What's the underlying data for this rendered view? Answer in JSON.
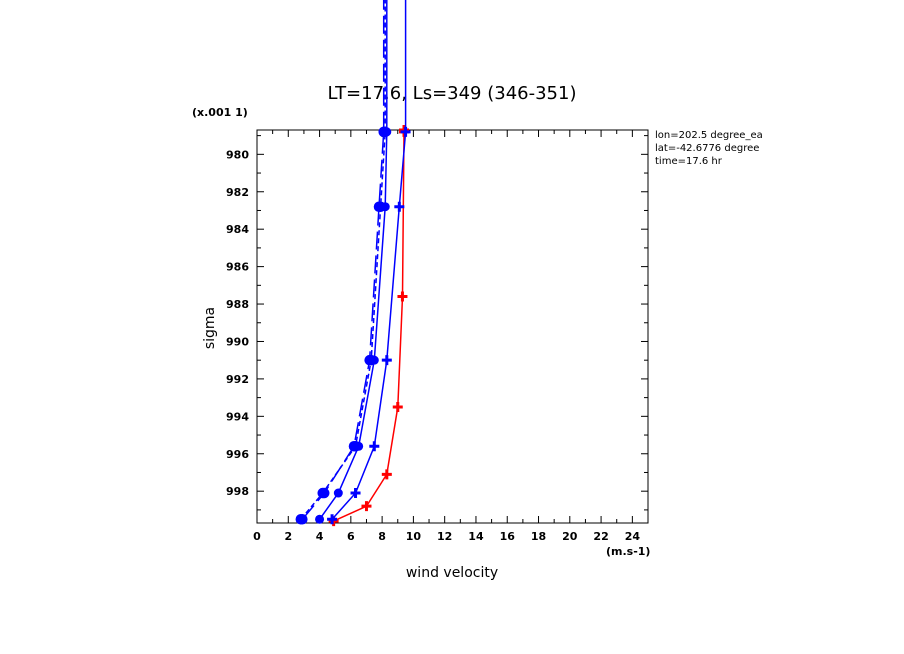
{
  "chart_data": {
    "type": "line",
    "title": "LT=17.6, Ls=349 (346-351)",
    "xlabel": "wind velocity",
    "ylabel": "sigma",
    "x_unit": "(m.s-1)",
    "y_unit": "(x.001 1)",
    "xlim": [
      0,
      25
    ],
    "ylim": [
      999.7,
      978.7
    ],
    "x_ticks": [
      0,
      2,
      4,
      6,
      8,
      10,
      12,
      14,
      16,
      18,
      20,
      22,
      24
    ],
    "y_ticks": [
      980,
      982,
      984,
      986,
      988,
      990,
      992,
      994,
      996,
      998
    ],
    "info": [
      "lon=202.5 degree_ea",
      "lat=-42.6776 degree",
      "time=17.6 hr"
    ],
    "grid": false,
    "series": [
      {
        "color": "#ff0000",
        "dash": "solid",
        "marker": "plus",
        "x": [
          4.9,
          7.0,
          8.3,
          9.0,
          9.3,
          9.4,
          9.4
        ],
        "y": [
          999.6,
          998.8,
          997.1,
          993.5,
          987.6,
          978.8,
          978.7
        ]
      },
      {
        "color": "#0000ff",
        "dash": "solid",
        "marker": "plus",
        "x": [
          4.8,
          6.3,
          7.5,
          8.3,
          9.1,
          9.5,
          9.5
        ],
        "y": [
          999.5,
          998.1,
          995.6,
          991.0,
          982.8,
          978.8,
          970.0
        ]
      },
      {
        "color": "#0000ff",
        "dash": "solid",
        "marker": "dot",
        "x": [
          4.0,
          5.2,
          6.5,
          7.5,
          8.2,
          8.3,
          8.3
        ],
        "y": [
          999.5,
          998.1,
          995.6,
          991.0,
          982.8,
          978.8,
          970.0
        ]
      },
      {
        "color": "#0000ff",
        "dash": "longdash",
        "marker": "circle",
        "x": [
          2.9,
          4.3,
          6.2,
          7.2,
          7.8,
          8.1,
          8.1
        ],
        "y": [
          999.5,
          998.1,
          995.6,
          991.0,
          982.8,
          978.8,
          970.0
        ]
      },
      {
        "color": "#0000ff",
        "dash": "shortdash",
        "marker": "circle",
        "x": [
          2.8,
          4.2,
          6.3,
          7.3,
          7.9,
          8.2,
          8.2
        ],
        "y": [
          999.5,
          998.1,
          995.6,
          991.0,
          982.8,
          978.8,
          970.0
        ]
      }
    ]
  }
}
